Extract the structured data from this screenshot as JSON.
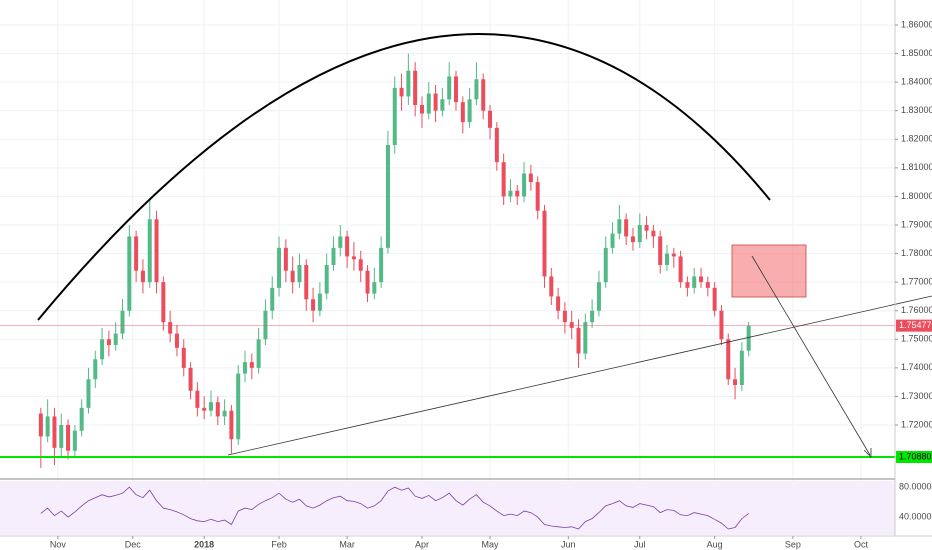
{
  "chart_data": {
    "type": "candlestick",
    "up_color": "#53b987",
    "down_color": "#eb4d5c",
    "grid": true,
    "xlim": [
      -17,
      246
    ],
    "ylim": [
      1.70145,
      1.86875
    ],
    "xticks": [
      {
        "value": 0,
        "label": "Nov"
      },
      {
        "value": 22,
        "label": "Dec"
      },
      {
        "value": 43,
        "label": "2018"
      },
      {
        "value": 65,
        "label": "Feb"
      },
      {
        "value": 85,
        "label": "Mar"
      },
      {
        "value": 107,
        "label": "Apr"
      },
      {
        "value": 127,
        "label": "May"
      },
      {
        "value": 150,
        "label": "Jun"
      },
      {
        "value": 171,
        "label": "Jul"
      },
      {
        "value": 193,
        "label": "Aug"
      },
      {
        "value": 216,
        "label": "Sep"
      },
      {
        "value": 236,
        "label": "Oct"
      }
    ],
    "yticks": [
      {
        "value": 1.72,
        "label": "1.72000"
      },
      {
        "value": 1.73,
        "label": "1.73000"
      },
      {
        "value": 1.74,
        "label": "1.74000"
      },
      {
        "value": 1.75,
        "label": "1.75000"
      },
      {
        "value": 1.76,
        "label": "1.76000"
      },
      {
        "value": 1.77,
        "label": "1.77000"
      },
      {
        "value": 1.78,
        "label": "1.78000"
      },
      {
        "value": 1.79,
        "label": "1.79000"
      },
      {
        "value": 1.8,
        "label": "1.80000"
      },
      {
        "value": 1.81,
        "label": "1.81000"
      },
      {
        "value": 1.82,
        "label": "1.82000"
      },
      {
        "value": 1.83,
        "label": "1.83000"
      },
      {
        "value": 1.84,
        "label": "1.84000"
      },
      {
        "value": 1.85,
        "label": "1.85000"
      },
      {
        "value": 1.86,
        "label": "1.86000"
      }
    ],
    "support": {
      "value": 1.7088,
      "label": "1.70880",
      "color": "#00e600"
    },
    "x": [
      -5,
      -3,
      -1,
      1,
      3,
      5,
      7,
      9,
      11,
      13,
      15,
      17,
      19,
      21,
      23,
      25,
      27,
      29,
      31,
      33,
      35,
      37,
      39,
      41,
      43,
      45,
      47,
      49,
      51,
      53,
      55,
      57,
      59,
      61,
      63,
      65,
      67,
      69,
      71,
      73,
      75,
      77,
      79,
      81,
      83,
      85,
      87,
      89,
      91,
      93,
      95,
      97,
      99,
      101,
      103,
      105,
      107,
      109,
      111,
      113,
      115,
      117,
      119,
      121,
      123,
      125,
      127,
      129,
      131,
      133,
      135,
      137,
      139,
      141,
      143,
      145,
      147,
      149,
      151,
      153,
      155,
      157,
      159,
      161,
      163,
      165,
      167,
      169,
      171,
      173,
      175,
      177,
      179,
      181,
      183,
      185,
      187,
      189,
      191,
      193,
      195,
      197,
      199,
      201,
      203
    ],
    "candles": [
      [
        1.724,
        1.726,
        1.705,
        1.716
      ],
      [
        1.716,
        1.729,
        1.714,
        1.723
      ],
      [
        1.723,
        1.726,
        1.706,
        1.712
      ],
      [
        1.712,
        1.724,
        1.709,
        1.72
      ],
      [
        1.72,
        1.722,
        1.708,
        1.711
      ],
      [
        1.711,
        1.72,
        1.709,
        1.718
      ],
      [
        1.718,
        1.729,
        1.716,
        1.726
      ],
      [
        1.726,
        1.74,
        1.724,
        1.736
      ],
      [
        1.736,
        1.746,
        1.733,
        1.743
      ],
      [
        1.743,
        1.754,
        1.741,
        1.75
      ],
      [
        1.75,
        1.753,
        1.744,
        1.748
      ],
      [
        1.748,
        1.756,
        1.746,
        1.752
      ],
      [
        1.752,
        1.764,
        1.75,
        1.76
      ],
      [
        1.76,
        1.79,
        1.758,
        1.786
      ],
      [
        1.786,
        1.788,
        1.77,
        1.774
      ],
      [
        1.774,
        1.778,
        1.766,
        1.77
      ],
      [
        1.77,
        1.799,
        1.768,
        1.792
      ],
      [
        1.792,
        1.795,
        1.766,
        1.77
      ],
      [
        1.77,
        1.772,
        1.753,
        1.756
      ],
      [
        1.756,
        1.76,
        1.749,
        1.752
      ],
      [
        1.752,
        1.755,
        1.744,
        1.747
      ],
      [
        1.747,
        1.75,
        1.737,
        1.74
      ],
      [
        1.74,
        1.742,
        1.729,
        1.732
      ],
      [
        1.732,
        1.735,
        1.723,
        1.726
      ],
      [
        1.726,
        1.73,
        1.722,
        1.725
      ],
      [
        1.725,
        1.732,
        1.723,
        1.728
      ],
      [
        1.728,
        1.73,
        1.72,
        1.723
      ],
      [
        1.723,
        1.729,
        1.72,
        1.725
      ],
      [
        1.725,
        1.727,
        1.71,
        1.715
      ],
      [
        1.715,
        1.741,
        1.713,
        1.738
      ],
      [
        1.738,
        1.746,
        1.735,
        1.742
      ],
      [
        1.742,
        1.745,
        1.736,
        1.74
      ],
      [
        1.74,
        1.754,
        1.738,
        1.75
      ],
      [
        1.75,
        1.764,
        1.748,
        1.76
      ],
      [
        1.76,
        1.772,
        1.757,
        1.768
      ],
      [
        1.768,
        1.786,
        1.765,
        1.782
      ],
      [
        1.782,
        1.785,
        1.77,
        1.774
      ],
      [
        1.774,
        1.779,
        1.766,
        1.77
      ],
      [
        1.77,
        1.78,
        1.768,
        1.776
      ],
      [
        1.776,
        1.778,
        1.76,
        1.764
      ],
      [
        1.764,
        1.768,
        1.756,
        1.76
      ],
      [
        1.76,
        1.77,
        1.758,
        1.766
      ],
      [
        1.766,
        1.78,
        1.764,
        1.776
      ],
      [
        1.776,
        1.786,
        1.774,
        1.782
      ],
      [
        1.782,
        1.79,
        1.779,
        1.786
      ],
      [
        1.786,
        1.788,
        1.775,
        1.779
      ],
      [
        1.779,
        1.784,
        1.774,
        1.778
      ],
      [
        1.778,
        1.781,
        1.77,
        1.774
      ],
      [
        1.774,
        1.776,
        1.763,
        1.766
      ],
      [
        1.766,
        1.775,
        1.764,
        1.77
      ],
      [
        1.77,
        1.786,
        1.768,
        1.782
      ],
      [
        1.782,
        1.823,
        1.78,
        1.818
      ],
      [
        1.818,
        1.842,
        1.815,
        1.838
      ],
      [
        1.838,
        1.843,
        1.83,
        1.835
      ],
      [
        1.835,
        1.85,
        1.832,
        1.844
      ],
      [
        1.844,
        1.847,
        1.828,
        1.832
      ],
      [
        1.832,
        1.835,
        1.824,
        1.829
      ],
      [
        1.829,
        1.84,
        1.827,
        1.836
      ],
      [
        1.836,
        1.839,
        1.826,
        1.83
      ],
      [
        1.83,
        1.838,
        1.828,
        1.834
      ],
      [
        1.834,
        1.847,
        1.832,
        1.842
      ],
      [
        1.842,
        1.844,
        1.83,
        1.833
      ],
      [
        1.833,
        1.835,
        1.822,
        1.826
      ],
      [
        1.826,
        1.838,
        1.824,
        1.834
      ],
      [
        1.834,
        1.847,
        1.832,
        1.841
      ],
      [
        1.841,
        1.843,
        1.827,
        1.83
      ],
      [
        1.83,
        1.832,
        1.82,
        1.824
      ],
      [
        1.824,
        1.826,
        1.809,
        1.812
      ],
      [
        1.812,
        1.815,
        1.797,
        1.8
      ],
      [
        1.8,
        1.806,
        1.798,
        1.802
      ],
      [
        1.802,
        1.804,
        1.797,
        1.8
      ],
      [
        1.8,
        1.812,
        1.798,
        1.808
      ],
      [
        1.808,
        1.811,
        1.802,
        1.805
      ],
      [
        1.805,
        1.807,
        1.792,
        1.795
      ],
      [
        1.795,
        1.797,
        1.768,
        1.772
      ],
      [
        1.772,
        1.775,
        1.762,
        1.765
      ],
      [
        1.765,
        1.768,
        1.757,
        1.76
      ],
      [
        1.76,
        1.763,
        1.752,
        1.756
      ],
      [
        1.756,
        1.76,
        1.75,
        1.754
      ],
      [
        1.754,
        1.757,
        1.74,
        1.745
      ],
      [
        1.745,
        1.759,
        1.743,
        1.756
      ],
      [
        1.756,
        1.764,
        1.754,
        1.76
      ],
      [
        1.76,
        1.774,
        1.758,
        1.77
      ],
      [
        1.77,
        1.786,
        1.768,
        1.782
      ],
      [
        1.782,
        1.791,
        1.78,
        1.787
      ],
      [
        1.787,
        1.797,
        1.785,
        1.792
      ],
      [
        1.792,
        1.794,
        1.783,
        1.786
      ],
      [
        1.786,
        1.789,
        1.781,
        1.784
      ],
      [
        1.784,
        1.794,
        1.782,
        1.79
      ],
      [
        1.79,
        1.793,
        1.785,
        1.788
      ],
      [
        1.788,
        1.79,
        1.782,
        1.786
      ],
      [
        1.786,
        1.788,
        1.773,
        1.776
      ],
      [
        1.776,
        1.783,
        1.774,
        1.78
      ],
      [
        1.78,
        1.782,
        1.775,
        1.779
      ],
      [
        1.779,
        1.781,
        1.768,
        1.77
      ],
      [
        1.77,
        1.772,
        1.765,
        1.768
      ],
      [
        1.768,
        1.775,
        1.766,
        1.772
      ],
      [
        1.772,
        1.775,
        1.768,
        1.77
      ],
      [
        1.77,
        1.772,
        1.765,
        1.768
      ],
      [
        1.768,
        1.77,
        1.758,
        1.76
      ],
      [
        1.76,
        1.762,
        1.748,
        1.75
      ],
      [
        1.75,
        1.752,
        1.734,
        1.736
      ],
      [
        1.736,
        1.74,
        1.729,
        1.734
      ],
      [
        1.734,
        1.749,
        1.732,
        1.746
      ],
      [
        1.746,
        1.756,
        1.744,
        1.75477
      ]
    ],
    "rsi": {
      "color": "#7b3fa6",
      "ylim": [
        16,
        87
      ],
      "yticks": [
        {
          "value": 80,
          "label": "80.0000"
        },
        {
          "value": 40,
          "label": "40.0000"
        }
      ],
      "values": [
        45,
        52,
        42,
        48,
        40,
        47,
        55,
        62,
        66,
        70,
        67,
        69,
        72,
        80,
        70,
        66,
        76,
        62,
        52,
        50,
        47,
        43,
        38,
        35,
        34,
        37,
        34,
        36,
        30,
        48,
        52,
        50,
        57,
        62,
        66,
        72,
        64,
        60,
        64,
        55,
        52,
        56,
        62,
        66,
        68,
        62,
        61,
        58,
        52,
        55,
        62,
        75,
        80,
        76,
        79,
        68,
        65,
        69,
        62,
        66,
        72,
        62,
        56,
        64,
        70,
        60,
        55,
        48,
        42,
        44,
        42,
        48,
        46,
        40,
        30,
        28,
        27,
        26,
        27,
        24,
        34,
        38,
        46,
        55,
        58,
        62,
        55,
        53,
        58,
        56,
        54,
        46,
        50,
        49,
        43,
        42,
        46,
        44,
        42,
        37,
        32,
        24,
        26,
        38,
        45
      ]
    }
  }
}
